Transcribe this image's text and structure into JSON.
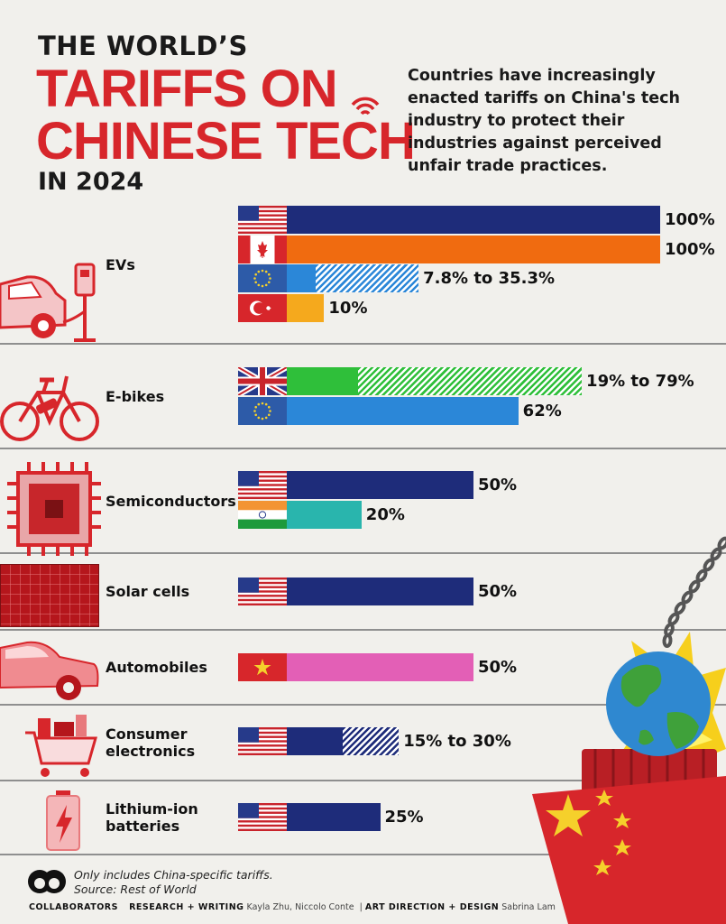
{
  "header": {
    "title_line1": "THE WORLD’S",
    "title_line2": "TARIFFS ON",
    "title_line3": "CHINESE TECH",
    "title_line4": "IN 2024",
    "intro": "Countries have increasingly enacted tariffs on China's tech industry to protect their industries against perceived unfair trade practices."
  },
  "chart_data": {
    "type": "bar",
    "orientation": "horizontal",
    "xlim": [
      0,
      100
    ],
    "unit": "%",
    "groups": [
      {
        "category": "EVs",
        "bars": [
          {
            "country_flag": "usa-flag",
            "value": 100,
            "label": "100%",
            "color": "#1e2c7a"
          },
          {
            "country_flag": "canada-flag",
            "value": 100,
            "label": "100%",
            "color": "#f06b10"
          },
          {
            "country_flag": "eu-flag",
            "min": 7.8,
            "max": 35.3,
            "label": "7.8% to 35.3%",
            "color": "#2b87d8"
          },
          {
            "country_flag": "turkey-flag",
            "value": 10,
            "label": "10%",
            "color": "#f5a91d"
          }
        ]
      },
      {
        "category": "E-bikes",
        "bars": [
          {
            "country_flag": "uk-flag",
            "min": 19,
            "max": 79,
            "label": "19% to 79%",
            "color": "#2fbf3a"
          },
          {
            "country_flag": "eu-flag",
            "value": 62,
            "label": "62%",
            "color": "#2b87d8"
          }
        ]
      },
      {
        "category": "Semiconductors",
        "bars": [
          {
            "country_flag": "usa-flag",
            "value": 50,
            "label": "50%",
            "color": "#1e2c7a"
          },
          {
            "country_flag": "india-flag",
            "value": 20,
            "label": "20%",
            "color": "#29b5ad"
          }
        ]
      },
      {
        "category": "Solar cells",
        "bars": [
          {
            "country_flag": "usa-flag",
            "value": 50,
            "label": "50%",
            "color": "#1e2c7a"
          }
        ]
      },
      {
        "category": "Automobiles",
        "bars": [
          {
            "country_flag": "vietnam-flag",
            "value": 50,
            "label": "50%",
            "color": "#e35fb6"
          }
        ]
      },
      {
        "category": "Consumer electronics",
        "bars": [
          {
            "country_flag": "usa-flag",
            "min": 15,
            "max": 30,
            "label": "15% to 30%",
            "color": "#1e2c7a"
          }
        ]
      },
      {
        "category": "Lithium-ion batteries",
        "bars": [
          {
            "country_flag": "usa-flag",
            "value": 25,
            "label": "25%",
            "color": "#1e2c7a"
          }
        ]
      }
    ]
  },
  "footer": {
    "note_line1": "Only includes China-specific tariffs.",
    "note_line2": "Source: Rest of World",
    "brand": "COLLABORATORS",
    "research_label": "RESEARCH + WRITING",
    "research_names": "Kayla Zhu, Niccolo Conte",
    "design_label": "ART DIRECTION + DESIGN",
    "design_names": "Sabrina Lam"
  }
}
